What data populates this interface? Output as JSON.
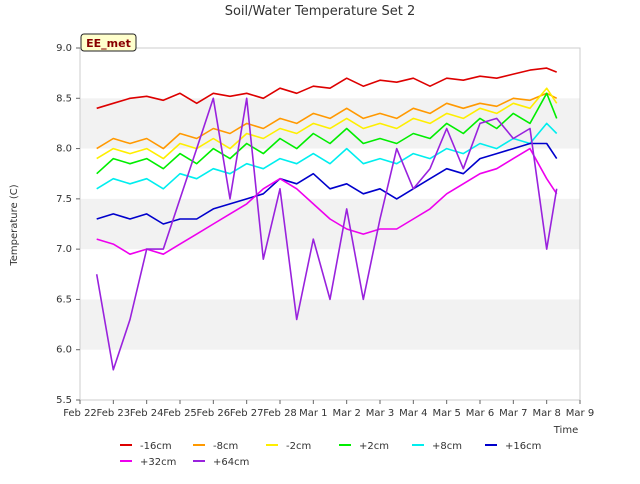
{
  "chart_data": {
    "type": "line",
    "title": "Soil/Water Temperature Set 2",
    "xlabel": "Time",
    "ylabel": "Temperature (C)",
    "badge": "EE_met",
    "ylim": [
      5.5,
      9.0
    ],
    "yticks": [
      "5.5",
      "6.0",
      "6.5",
      "7.0",
      "7.5",
      "8.0",
      "8.5",
      "9.0"
    ],
    "xticks": [
      "Feb 22",
      "Feb 23",
      "Feb 24",
      "Feb 25",
      "Feb 26",
      "Feb 27",
      "Feb 28",
      "Mar 1",
      "Mar 2",
      "Mar 3",
      "Mar 4",
      "Mar 5",
      "Mar 6",
      "Mar 7",
      "Mar 8",
      "Mar 9"
    ],
    "x": [
      0.5,
      1.0,
      1.5,
      2.0,
      2.5,
      3.0,
      3.5,
      4.0,
      4.5,
      5.0,
      5.5,
      6.0,
      6.5,
      7.0,
      7.5,
      8.0,
      8.5,
      9.0,
      9.5,
      10.0,
      10.5,
      11.0,
      11.5,
      12.0,
      12.5,
      13.0,
      13.5,
      14.0,
      14.3
    ],
    "grid": "alternating horizontal bands",
    "legend_position": "bottom",
    "series": [
      {
        "name": "-16cm",
        "color": "#dd0000",
        "values": [
          8.4,
          8.45,
          8.5,
          8.52,
          8.48,
          8.55,
          8.45,
          8.55,
          8.52,
          8.55,
          8.5,
          8.6,
          8.55,
          8.62,
          8.6,
          8.7,
          8.62,
          8.68,
          8.66,
          8.7,
          8.62,
          8.7,
          8.68,
          8.72,
          8.7,
          8.74,
          8.78,
          8.8,
          8.76
        ]
      },
      {
        "name": "-8cm",
        "color": "#ff9900",
        "values": [
          8.0,
          8.1,
          8.05,
          8.1,
          8.0,
          8.15,
          8.1,
          8.2,
          8.15,
          8.25,
          8.2,
          8.3,
          8.25,
          8.35,
          8.3,
          8.4,
          8.3,
          8.35,
          8.3,
          8.4,
          8.35,
          8.45,
          8.4,
          8.45,
          8.42,
          8.5,
          8.48,
          8.55,
          8.5
        ]
      },
      {
        "name": "-2cm",
        "color": "#ffee00",
        "values": [
          7.9,
          8.0,
          7.95,
          8.0,
          7.9,
          8.05,
          8.0,
          8.1,
          8.0,
          8.15,
          8.1,
          8.2,
          8.15,
          8.25,
          8.2,
          8.3,
          8.2,
          8.25,
          8.2,
          8.3,
          8.25,
          8.35,
          8.3,
          8.4,
          8.35,
          8.45,
          8.4,
          8.6,
          8.45
        ]
      },
      {
        "name": "+2cm",
        "color": "#00ee00",
        "values": [
          7.75,
          7.9,
          7.85,
          7.9,
          7.8,
          7.95,
          7.85,
          8.0,
          7.9,
          8.05,
          7.95,
          8.1,
          8.0,
          8.15,
          8.05,
          8.2,
          8.05,
          8.1,
          8.05,
          8.15,
          8.1,
          8.25,
          8.15,
          8.3,
          8.2,
          8.35,
          8.25,
          8.55,
          8.3
        ]
      },
      {
        "name": "+8cm",
        "color": "#00eeee",
        "values": [
          7.6,
          7.7,
          7.65,
          7.7,
          7.6,
          7.75,
          7.7,
          7.8,
          7.75,
          7.85,
          7.8,
          7.9,
          7.85,
          7.95,
          7.85,
          8.0,
          7.85,
          7.9,
          7.85,
          7.95,
          7.9,
          8.0,
          7.95,
          8.05,
          8.0,
          8.1,
          8.05,
          8.25,
          8.15
        ]
      },
      {
        "name": "+16cm",
        "color": "#0000cc",
        "values": [
          7.3,
          7.35,
          7.3,
          7.35,
          7.25,
          7.3,
          7.3,
          7.4,
          7.45,
          7.5,
          7.55,
          7.7,
          7.65,
          7.75,
          7.6,
          7.65,
          7.55,
          7.6,
          7.5,
          7.6,
          7.7,
          7.8,
          7.75,
          7.9,
          7.95,
          8.0,
          8.05,
          8.05,
          7.9
        ]
      },
      {
        "name": "+32cm",
        "color": "#ee00ee",
        "values": [
          7.1,
          7.05,
          6.95,
          7.0,
          6.95,
          7.05,
          7.15,
          7.25,
          7.35,
          7.45,
          7.6,
          7.7,
          7.6,
          7.45,
          7.3,
          7.2,
          7.15,
          7.2,
          7.2,
          7.3,
          7.4,
          7.55,
          7.65,
          7.75,
          7.8,
          7.9,
          8.0,
          7.7,
          7.55
        ]
      },
      {
        "name": "+64cm",
        "color": "#9922dd",
        "values": [
          6.75,
          5.8,
          6.3,
          7.0,
          7.0,
          7.5,
          8.0,
          8.5,
          7.5,
          8.5,
          6.9,
          7.6,
          6.3,
          7.1,
          6.5,
          7.4,
          6.5,
          7.3,
          8.0,
          7.6,
          7.8,
          8.2,
          7.8,
          8.25,
          8.3,
          8.1,
          8.2,
          7.0,
          7.6
        ]
      }
    ]
  }
}
